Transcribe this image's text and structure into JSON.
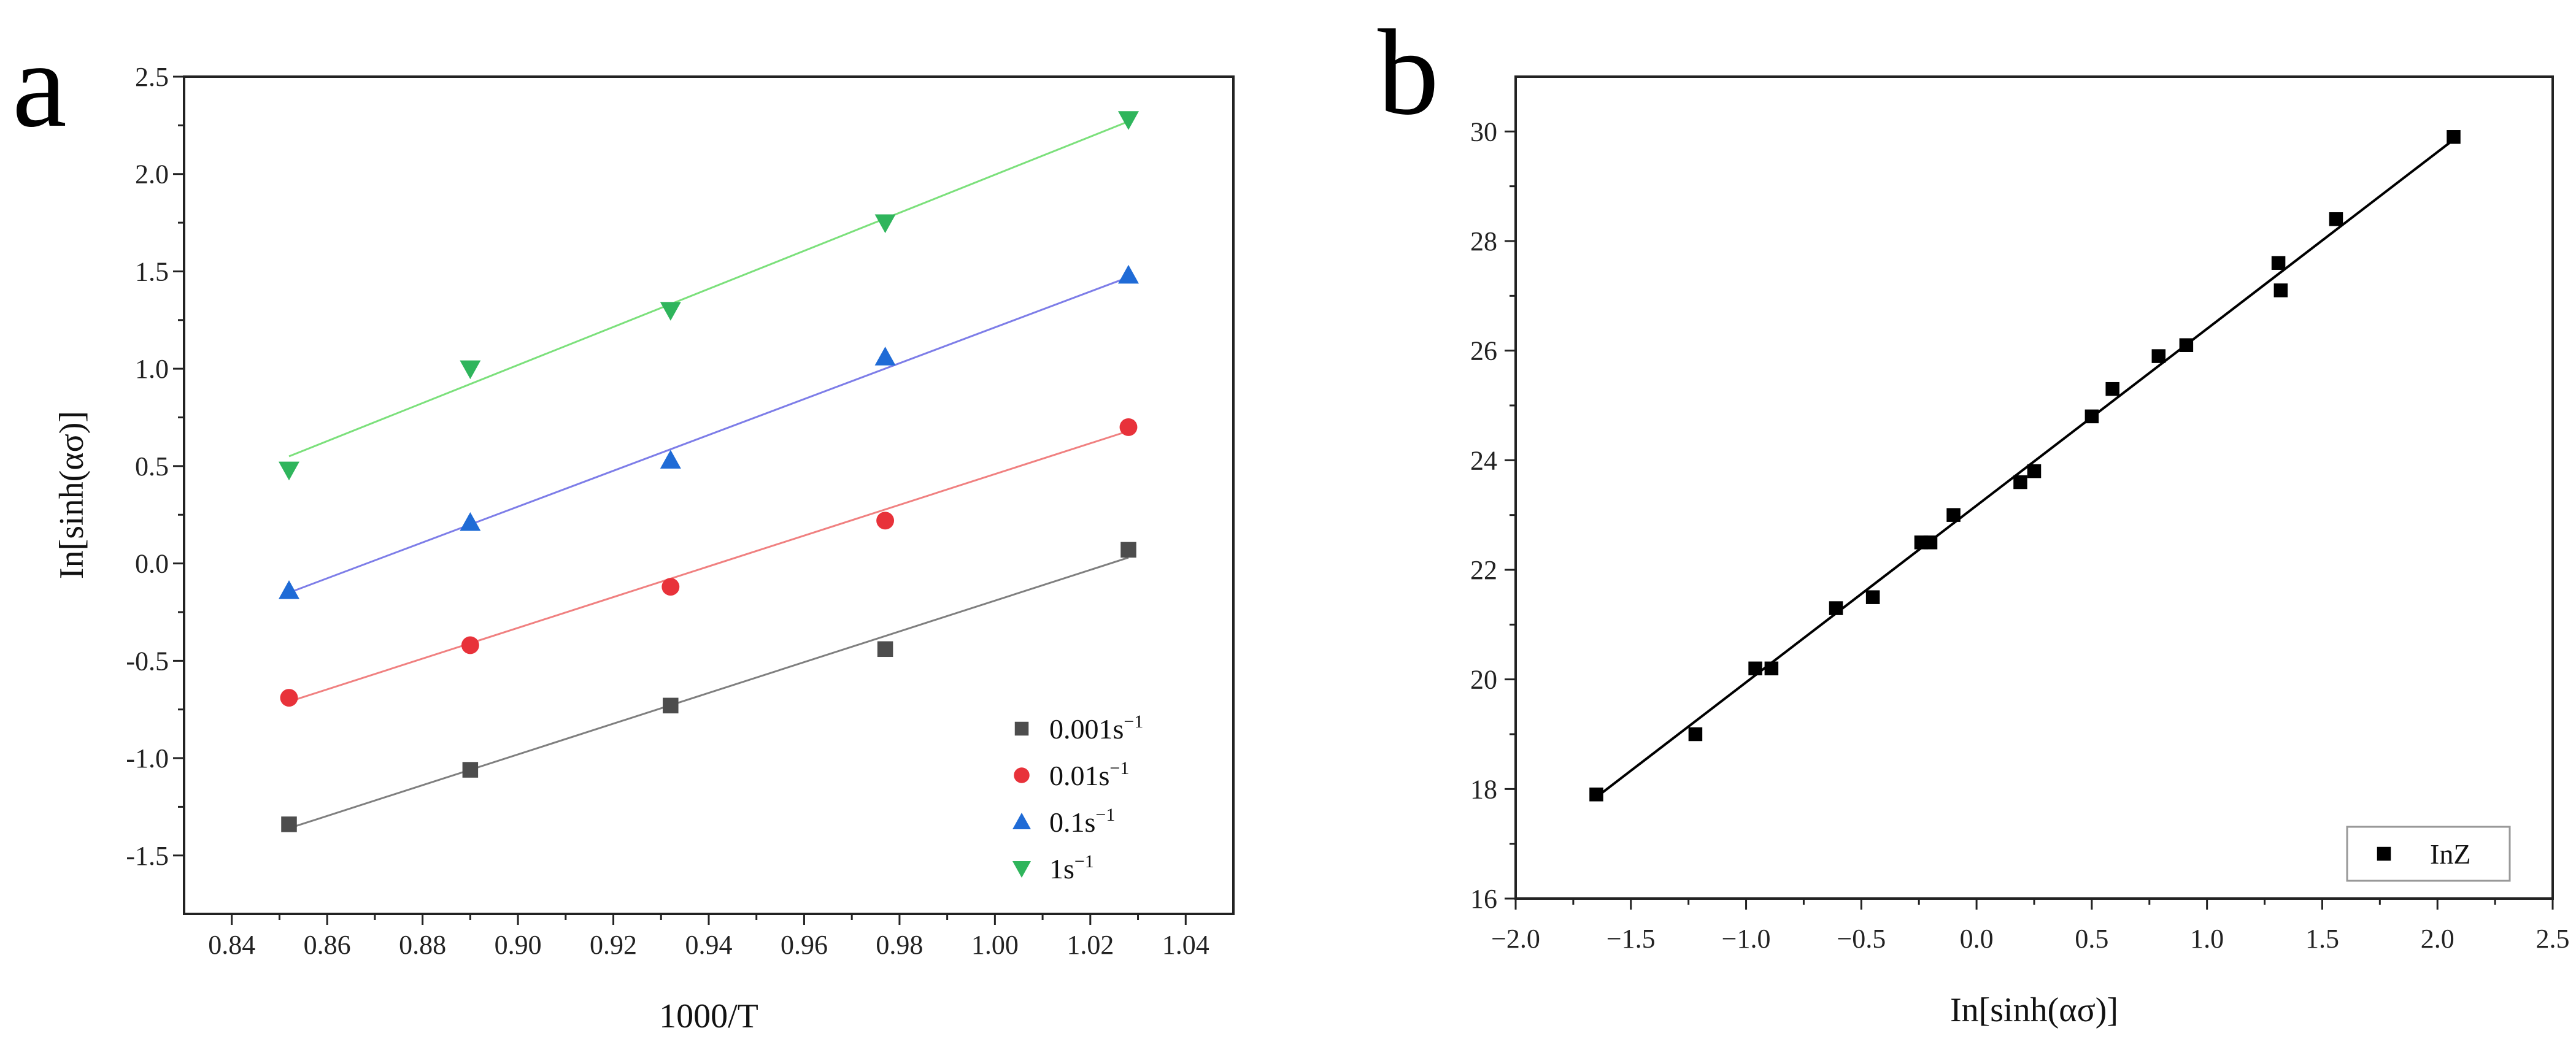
{
  "chart_data": [
    {
      "panel": "a",
      "type": "scatter",
      "title": "",
      "xlabel": "1000/T",
      "ylabel": "In[sinh(ασ)]",
      "xlim": [
        0.83,
        1.05
      ],
      "ylim": [
        -1.8,
        2.5
      ],
      "xticks": [
        0.84,
        0.86,
        0.88,
        0.9,
        0.92,
        0.94,
        0.96,
        0.98,
        1.0,
        1.02,
        1.04
      ],
      "xtick_labels": [
        "0.84",
        "0.86",
        "0.88",
        "0.90",
        "0.92",
        "0.94",
        "0.96",
        "0.98",
        "1.00",
        "1.02",
        "1.04"
      ],
      "yticks": [
        -1.5,
        -1.0,
        -0.5,
        0.0,
        0.5,
        1.0,
        1.5,
        2.0,
        2.5
      ],
      "ytick_labels": [
        "-1.5",
        "-1.0",
        "-0.5",
        "0.0",
        "0.5",
        "1.0",
        "1.5",
        "2.0",
        "2.5"
      ],
      "legend_position": "bottom-right",
      "series": [
        {
          "name": "0.001s",
          "sup": "−1",
          "marker": "square",
          "color": "#4d4d4d",
          "line_color": "#7f7f7f",
          "x": [
            0.852,
            0.89,
            0.932,
            0.977,
            1.028
          ],
          "y": [
            -1.34,
            -1.06,
            -0.73,
            -0.44,
            0.07
          ],
          "fit": [
            [
              0.852,
              -1.36
            ],
            [
              1.028,
              0.03
            ]
          ]
        },
        {
          "name": "0.01s",
          "sup": "−1",
          "marker": "circle",
          "color": "#e8323a",
          "line_color": "#f08080",
          "x": [
            0.852,
            0.89,
            0.932,
            0.977,
            1.028
          ],
          "y": [
            -0.69,
            -0.42,
            -0.12,
            0.22,
            0.7
          ],
          "fit": [
            [
              0.852,
              -0.71
            ],
            [
              1.028,
              0.68
            ]
          ]
        },
        {
          "name": "0.1s",
          "sup": "−1",
          "marker": "triangle-up",
          "color": "#1f6bd6",
          "line_color": "#7d7de8",
          "x": [
            0.852,
            0.89,
            0.932,
            0.977,
            1.028
          ],
          "y": [
            -0.14,
            0.21,
            0.53,
            1.06,
            1.48
          ],
          "fit": [
            [
              0.852,
              -0.15
            ],
            [
              1.028,
              1.47
            ]
          ]
        },
        {
          "name": "1s",
          "sup": "−1",
          "marker": "triangle-down",
          "color": "#2fb55c",
          "line_color": "#7be07b",
          "x": [
            0.852,
            0.89,
            0.932,
            0.977,
            1.028
          ],
          "y": [
            0.48,
            1.0,
            1.3,
            1.75,
            2.28
          ],
          "fit": [
            [
              0.852,
              0.55
            ],
            [
              1.028,
              2.27
            ]
          ]
        }
      ]
    },
    {
      "panel": "b",
      "type": "scatter",
      "title": "",
      "xlabel": "In[sinh(ασ)]",
      "ylabel": "",
      "xlim": [
        -2.0,
        2.5
      ],
      "ylim": [
        16,
        31
      ],
      "xticks": [
        -2.0,
        -1.5,
        -1.0,
        -0.5,
        0.0,
        0.5,
        1.0,
        1.5,
        2.0,
        2.5
      ],
      "xtick_labels": [
        "−2.0",
        "−1.5",
        "−1.0",
        "−0.5",
        "0.0",
        "0.5",
        "1.0",
        "1.5",
        "2.0",
        "2.5"
      ],
      "yticks": [
        16,
        18,
        20,
        22,
        24,
        26,
        28,
        30
      ],
      "ytick_labels": [
        "16",
        "18",
        "20",
        "22",
        "24",
        "26",
        "28",
        "30"
      ],
      "legend_position": "bottom-right",
      "series": [
        {
          "name": "InZ",
          "marker": "square",
          "color": "#000000",
          "line_color": "#000000",
          "x": [
            -1.65,
            -1.22,
            -0.96,
            -0.89,
            -0.61,
            -0.45,
            -0.24,
            -0.2,
            -0.1,
            0.19,
            0.25,
            0.5,
            0.59,
            0.79,
            0.91,
            1.31,
            1.32,
            1.56,
            2.07
          ],
          "y": [
            17.9,
            19.0,
            20.2,
            20.2,
            21.3,
            21.5,
            22.5,
            22.5,
            23.0,
            23.6,
            23.8,
            24.8,
            25.3,
            25.9,
            26.1,
            27.6,
            27.1,
            28.4,
            29.9
          ],
          "fit": [
            [
              -1.65,
              17.85
            ],
            [
              2.07,
              29.85
            ]
          ]
        }
      ]
    }
  ],
  "panel_labels": {
    "a": "a",
    "b": "b"
  }
}
